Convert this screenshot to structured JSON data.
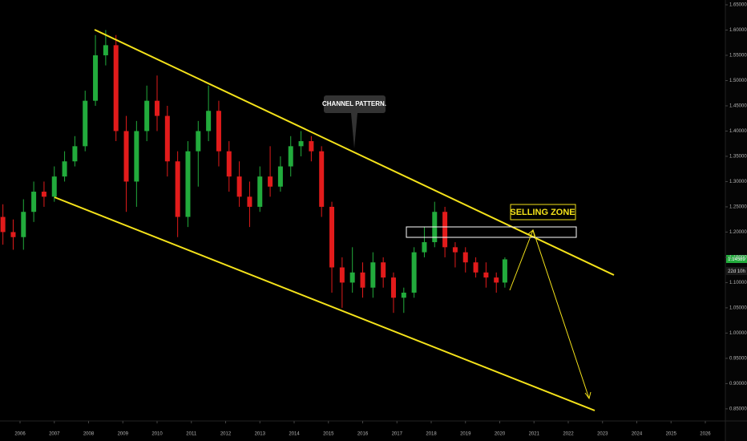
{
  "chart_data": {
    "type": "candlestick",
    "x": [
      2005.5,
      2005.8,
      2006.1,
      2006.4,
      2006.7,
      2007.0,
      2007.3,
      2007.6,
      2007.9,
      2008.2,
      2008.5,
      2008.8,
      2009.1,
      2009.4,
      2009.7,
      2010.0,
      2010.3,
      2010.6,
      2010.9,
      2011.2,
      2011.5,
      2011.8,
      2012.1,
      2012.4,
      2012.7,
      2013.0,
      2013.3,
      2013.6,
      2013.9,
      2014.2,
      2014.5,
      2014.8,
      2015.1,
      2015.4,
      2015.7,
      2016.0,
      2016.3,
      2016.6,
      2016.9,
      2017.2,
      2017.5,
      2017.8,
      2018.1,
      2018.4,
      2018.7,
      2019.0,
      2019.3,
      2019.6,
      2019.9,
      2020.15
    ],
    "open": [
      1.23,
      1.2,
      1.19,
      1.24,
      1.28,
      1.27,
      1.31,
      1.34,
      1.37,
      1.46,
      1.55,
      1.57,
      1.4,
      1.3,
      1.4,
      1.46,
      1.43,
      1.34,
      1.23,
      1.36,
      1.4,
      1.44,
      1.36,
      1.31,
      1.27,
      1.25,
      1.31,
      1.29,
      1.33,
      1.37,
      1.38,
      1.36,
      1.25,
      1.13,
      1.1,
      1.12,
      1.09,
      1.14,
      1.11,
      1.07,
      1.08,
      1.16,
      1.18,
      1.24,
      1.17,
      1.16,
      1.14,
      1.12,
      1.11,
      1.1
    ],
    "high": [
      1.255,
      1.225,
      1.265,
      1.3,
      1.3,
      1.33,
      1.36,
      1.39,
      1.48,
      1.59,
      1.6,
      1.59,
      1.43,
      1.42,
      1.49,
      1.51,
      1.45,
      1.36,
      1.38,
      1.42,
      1.49,
      1.46,
      1.38,
      1.34,
      1.3,
      1.33,
      1.37,
      1.35,
      1.39,
      1.4,
      1.39,
      1.37,
      1.26,
      1.15,
      1.17,
      1.14,
      1.16,
      1.15,
      1.12,
      1.09,
      1.17,
      1.21,
      1.26,
      1.25,
      1.18,
      1.17,
      1.15,
      1.14,
      1.12,
      1.15
    ],
    "low": [
      1.175,
      1.165,
      1.165,
      1.22,
      1.25,
      1.26,
      1.3,
      1.33,
      1.36,
      1.45,
      1.53,
      1.38,
      1.24,
      1.25,
      1.38,
      1.4,
      1.31,
      1.19,
      1.21,
      1.29,
      1.38,
      1.33,
      1.28,
      1.25,
      1.21,
      1.24,
      1.27,
      1.28,
      1.31,
      1.35,
      1.34,
      1.23,
      1.08,
      1.05,
      1.08,
      1.07,
      1.07,
      1.09,
      1.04,
      1.04,
      1.07,
      1.15,
      1.17,
      1.15,
      1.13,
      1.12,
      1.11,
      1.09,
      1.08,
      1.09
    ],
    "close": [
      1.2,
      1.19,
      1.24,
      1.28,
      1.27,
      1.31,
      1.34,
      1.37,
      1.46,
      1.55,
      1.57,
      1.4,
      1.3,
      1.4,
      1.46,
      1.43,
      1.34,
      1.23,
      1.36,
      1.4,
      1.44,
      1.36,
      1.31,
      1.27,
      1.25,
      1.31,
      1.29,
      1.33,
      1.37,
      1.38,
      1.36,
      1.25,
      1.13,
      1.1,
      1.12,
      1.09,
      1.14,
      1.11,
      1.07,
      1.08,
      1.16,
      1.18,
      1.24,
      1.17,
      1.16,
      1.14,
      1.12,
      1.11,
      1.1,
      1.146
    ],
    "up_color": "#22ab3c",
    "down_color": "#e21b1b",
    "xlim": [
      2005.415,
      2026.585
    ],
    "xticks": [
      2006,
      2007,
      2008,
      2009,
      2010,
      2011,
      2012,
      2013,
      2014,
      2015,
      2016,
      2017,
      2018,
      2019,
      2020,
      2021,
      2022,
      2023,
      2024,
      2025,
      2026
    ],
    "ylim": [
      0.826,
      1.6595
    ],
    "yticks": [
      {
        "value": 0.85,
        "label": "0.85000"
      },
      {
        "value": 0.9,
        "label": "0.90000"
      },
      {
        "value": 0.95,
        "label": "0.95000"
      },
      {
        "value": 1.0,
        "label": "1.00000"
      },
      {
        "value": 1.05,
        "label": "1.05000"
      },
      {
        "value": 1.1,
        "label": "1.10000"
      },
      {
        "value": 1.15,
        "label": "1.15000"
      },
      {
        "value": 1.2,
        "label": "1.20000"
      },
      {
        "value": 1.25,
        "label": "1.25000"
      },
      {
        "value": 1.3,
        "label": "1.30000"
      },
      {
        "value": 1.35,
        "label": "1.35000"
      },
      {
        "value": 1.4,
        "label": "1.40000"
      },
      {
        "value": 1.45,
        "label": "1.45000"
      },
      {
        "value": 1.5,
        "label": "1.50000"
      },
      {
        "value": 1.55,
        "label": "1.55000"
      },
      {
        "value": 1.6,
        "label": "1.60000"
      },
      {
        "value": 1.65,
        "label": "1.65000"
      }
    ],
    "price_label": "1.14589",
    "countdown_label": "22d 10h",
    "annotations": [
      "CHANNEL PATTERN.",
      "SELLING ZONE"
    ]
  }
}
